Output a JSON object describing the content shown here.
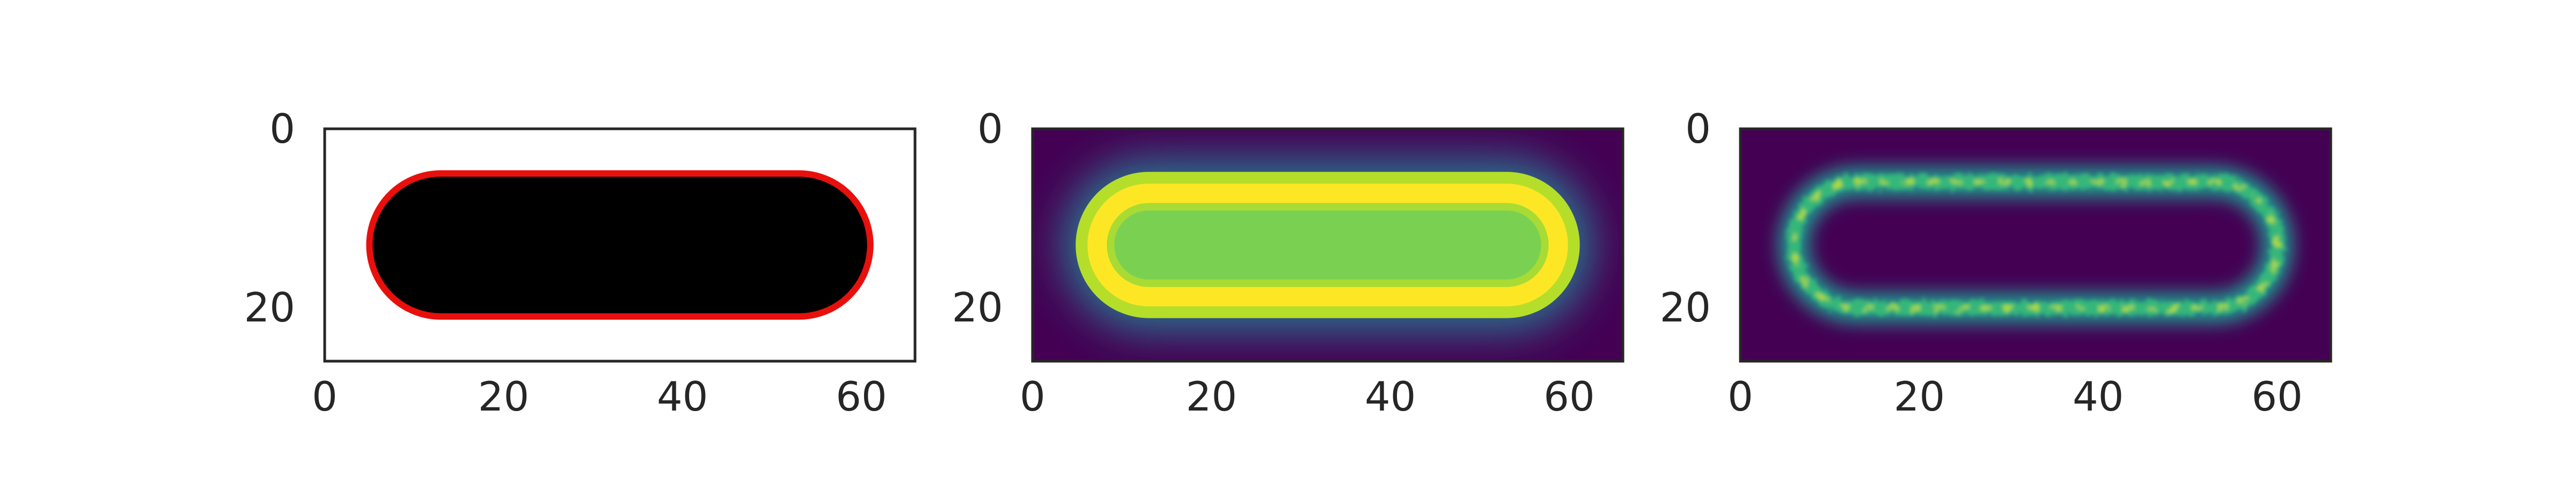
{
  "chart_data": [
    {
      "type": "heatmap",
      "description_of_content": "binary mask (black capsule) with red contour outline",
      "xlim": [
        0,
        66
      ],
      "ylim": [
        26,
        0
      ],
      "xticks": [
        "0",
        "20",
        "40",
        "60"
      ],
      "yticks": [
        "0",
        "20"
      ],
      "shape": {
        "x0": 5,
        "x1": 61,
        "y0": 5,
        "y1": 21
      },
      "fill_color": "#000000",
      "outline_color": "#e8100d",
      "background": "#ffffff"
    },
    {
      "type": "heatmap",
      "xlim": [
        0,
        66
      ],
      "ylim": [
        26,
        0
      ],
      "xticks": [
        "0",
        "20",
        "40",
        "60"
      ],
      "yticks": [
        "0",
        "20"
      ],
      "colormap": "viridis",
      "shape": {
        "x0": 5,
        "x1": 61,
        "y0": 5,
        "y1": 21
      }
    },
    {
      "type": "heatmap",
      "xlim": [
        0,
        66
      ],
      "ylim": [
        26,
        0
      ],
      "xticks": [
        "0",
        "20",
        "40",
        "60"
      ],
      "yticks": [
        "0",
        "20"
      ],
      "colormap": "viridis",
      "shape": {
        "x0": 5,
        "x1": 61,
        "y0": 5,
        "y1": 21
      }
    }
  ]
}
